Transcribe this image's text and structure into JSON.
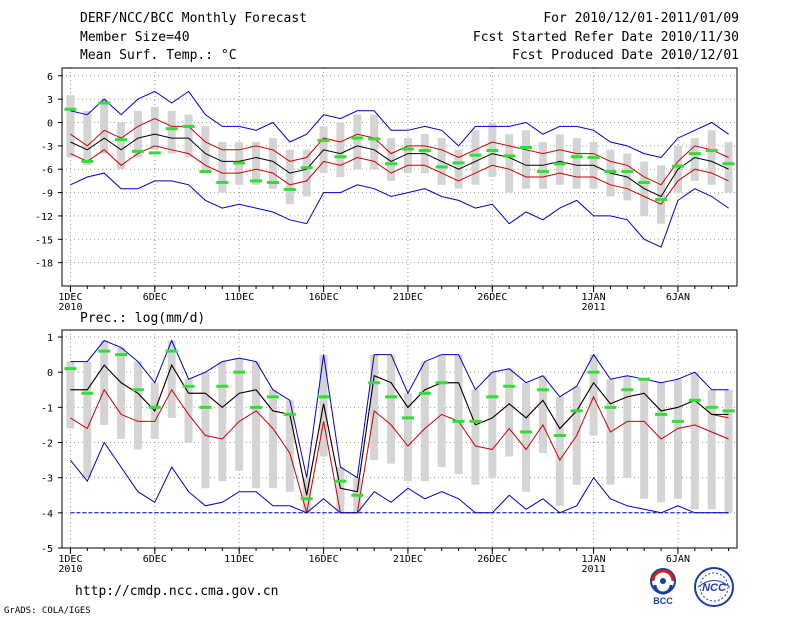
{
  "header": {
    "title": "DERF/NCC/BCC Monthly Forecast",
    "member_size": "Member Size=40",
    "variable": "Mean Surf. Temp.: °C",
    "period": "For 2010/12/01-2011/01/09",
    "started": "Fcst Started Refer Date 2010/11/30",
    "produced": "Fcst Produced Date 2010/12/01"
  },
  "footer": {
    "url": "http://cmdp.ncc.cma.gov.cn",
    "grads": "GrADS: COLA/IGES"
  },
  "logos": {
    "bcc": "BCC",
    "ncc": "NCC"
  },
  "colors": {
    "max": "#0000cc",
    "pct": "#cc0000",
    "mean": "#000000",
    "box": "#d4d4d4",
    "obs": "#33dd33",
    "grid": "#999999"
  },
  "chart_data": [
    {
      "type": "line",
      "title": "Mean Surf. Temp.: °C",
      "x_tick_labels": [
        {
          "day": 1,
          "label": "1DEC",
          "sub": "2010"
        },
        {
          "day": 6,
          "label": "6DEC",
          "sub": ""
        },
        {
          "day": 11,
          "label": "11DEC",
          "sub": ""
        },
        {
          "day": 16,
          "label": "16DEC",
          "sub": ""
        },
        {
          "day": 21,
          "label": "21DEC",
          "sub": ""
        },
        {
          "day": 26,
          "label": "26DEC",
          "sub": ""
        },
        {
          "day": 32,
          "label": "1JAN",
          "sub": "2011"
        },
        {
          "day": 37,
          "label": "6JAN",
          "sub": ""
        }
      ],
      "xlim": [
        0.5,
        40.5
      ],
      "ylim": [
        -21,
        7
      ],
      "yticks": [
        6,
        3,
        0,
        -3,
        -6,
        -9,
        -12,
        -15,
        -18
      ],
      "x_days": [
        1,
        2,
        3,
        4,
        5,
        6,
        7,
        8,
        9,
        10,
        11,
        12,
        13,
        14,
        15,
        16,
        17,
        18,
        19,
        20,
        21,
        22,
        23,
        24,
        25,
        26,
        27,
        28,
        29,
        30,
        31,
        32,
        33,
        34,
        35,
        36,
        37,
        38,
        39,
        40
      ],
      "series": [
        {
          "name": "max",
          "values": [
            1.5,
            1,
            3,
            1,
            3,
            4,
            2.5,
            4,
            1,
            -0.5,
            -0.5,
            -1,
            0,
            -2.5,
            -1.5,
            1,
            0.5,
            1.5,
            1.5,
            -1,
            -1,
            -0.5,
            -1,
            -3,
            -0.5,
            -0.5,
            -0.5,
            0,
            -1.5,
            -0.5,
            -0.5,
            -1,
            -2.5,
            -3,
            -4,
            -4.5,
            -2,
            -1,
            0,
            -1.5
          ]
        },
        {
          "name": "p90",
          "values": [
            -1.5,
            -3,
            -1,
            -2,
            -0.5,
            0.5,
            -0.5,
            -0.5,
            -2.5,
            -3.5,
            -3.5,
            -3,
            -3.5,
            -5,
            -4.5,
            -2,
            -2.5,
            -1.5,
            -2,
            -4,
            -3,
            -3,
            -3.5,
            -4.5,
            -3.5,
            -2.5,
            -3,
            -3.5,
            -4,
            -3.5,
            -4,
            -4,
            -5,
            -5.5,
            -7,
            -8,
            -5,
            -3,
            -3.5,
            -4.5
          ]
        },
        {
          "name": "mean",
          "values": [
            -2.5,
            -3.5,
            -2,
            -3.5,
            -2,
            -1.5,
            -2,
            -2,
            -4,
            -5,
            -5,
            -4.5,
            -5,
            -6.5,
            -6,
            -3.5,
            -4,
            -3,
            -3.5,
            -5,
            -4,
            -4,
            -5,
            -6,
            -5,
            -4,
            -4.5,
            -5.5,
            -5.5,
            -5,
            -5.5,
            -5.5,
            -6.5,
            -7,
            -8.5,
            -9.5,
            -6,
            -4.5,
            -5,
            -6
          ]
        },
        {
          "name": "p10",
          "values": [
            -4,
            -5,
            -3.5,
            -5.5,
            -4,
            -3,
            -3.5,
            -4,
            -5.5,
            -6.5,
            -6.5,
            -6,
            -6.5,
            -8,
            -7.5,
            -5,
            -5.5,
            -4.5,
            -5,
            -6.5,
            -5.5,
            -5.5,
            -6.5,
            -7.5,
            -6.5,
            -5.5,
            -6,
            -7,
            -7,
            -6.5,
            -7,
            -7,
            -8,
            -8.5,
            -9.5,
            -10.5,
            -7.5,
            -6,
            -6.5,
            -7.5
          ]
        },
        {
          "name": "min",
          "values": [
            -8,
            -7,
            -6.5,
            -8.5,
            -8.5,
            -7.5,
            -7.5,
            -8,
            -10,
            -11,
            -10.5,
            -11,
            -11.5,
            -12.5,
            -13,
            -9,
            -9,
            -8,
            -8.5,
            -9.5,
            -9,
            -8.5,
            -9.5,
            -10,
            -11,
            -10.5,
            -13,
            -11.5,
            -12.5,
            -11,
            -10,
            -12,
            -12,
            -12.5,
            -15,
            -16,
            -10,
            -8.5,
            -9.5,
            -11
          ]
        }
      ],
      "box": {
        "low": [
          -4.5,
          -5.5,
          -4,
          -6,
          -4.5,
          -3.5,
          -4,
          -4.5,
          -6.5,
          -9,
          -8,
          -8,
          -8.5,
          -10.5,
          -9.5,
          -6.5,
          -7,
          -6,
          -6,
          -7.5,
          -6.5,
          -6.5,
          -8,
          -8.5,
          -8,
          -7,
          -9,
          -8.5,
          -8.5,
          -8,
          -8.5,
          -8.5,
          -9.5,
          -10,
          -12,
          -13,
          -9,
          -7.5,
          -8,
          -9
        ],
        "high": [
          3.5,
          1.5,
          3,
          0,
          1.5,
          2,
          1.5,
          1,
          -0.5,
          -2.5,
          -2.5,
          -2.5,
          -2,
          -3.5,
          -3.5,
          -0.5,
          0,
          1,
          1,
          -2,
          -2,
          -1.5,
          -2,
          -3.5,
          -1,
          0,
          -1.5,
          -1,
          -2.5,
          -1.5,
          -2,
          -2.5,
          -3.5,
          -4,
          -5,
          -5.5,
          -3,
          -2,
          -1,
          -2.5
        ]
      },
      "observed": [
        1.7,
        -5,
        2.5,
        -2.2,
        -3.7,
        -3.9,
        -0.8,
        -0.5,
        -6.3,
        -7.7,
        -5.2,
        -7.5,
        -7.7,
        -8.6,
        -5.8,
        -2.3,
        -4.4,
        -2,
        -2.1,
        -5.3,
        -3.4,
        -3.6,
        -5.7,
        -5.2,
        -4.2,
        -3.6,
        -4.3,
        -3.2,
        -6.3,
        -5.3,
        -4.4,
        -4.5,
        -6.3,
        -6.3,
        -7.7,
        -9.9,
        -5.6,
        -4,
        -3.6,
        -5.3
      ]
    },
    {
      "type": "line",
      "title": "Prec.: log(mm/d)",
      "x_tick_labels": [
        {
          "day": 1,
          "label": "1DEC",
          "sub": "2010"
        },
        {
          "day": 6,
          "label": "6DEC",
          "sub": ""
        },
        {
          "day": 11,
          "label": "11DEC",
          "sub": ""
        },
        {
          "day": 16,
          "label": "16DEC",
          "sub": ""
        },
        {
          "day": 21,
          "label": "21DEC",
          "sub": ""
        },
        {
          "day": 26,
          "label": "26DEC",
          "sub": ""
        },
        {
          "day": 32,
          "label": "1JAN",
          "sub": "2011"
        },
        {
          "day": 37,
          "label": "6JAN",
          "sub": ""
        }
      ],
      "xlim": [
        0.5,
        40.5
      ],
      "ylim": [
        -5,
        1.2
      ],
      "yticks": [
        1,
        0,
        -1,
        -2,
        -3,
        -4,
        -5
      ],
      "x_days": [
        1,
        2,
        3,
        4,
        5,
        6,
        7,
        8,
        9,
        10,
        11,
        12,
        13,
        14,
        15,
        16,
        17,
        18,
        19,
        20,
        21,
        22,
        23,
        24,
        25,
        26,
        27,
        28,
        29,
        30,
        31,
        32,
        33,
        34,
        35,
        36,
        37,
        38,
        39,
        40
      ],
      "series": [
        {
          "name": "max",
          "values": [
            0.3,
            0.3,
            0.9,
            0.7,
            0.3,
            -0.3,
            0.9,
            -0.2,
            0,
            0.3,
            0.4,
            0.3,
            -0.5,
            -0.8,
            -3,
            0.5,
            -2.7,
            -3,
            0.5,
            0.5,
            -0.6,
            0.3,
            0.5,
            0.5,
            -0.5,
            0,
            0.1,
            -0.3,
            -0.1,
            -0.7,
            -0.4,
            0.5,
            -0.2,
            -0.1,
            -0.2,
            -0.3,
            -0.2,
            0,
            -0.5,
            -0.5
          ]
        },
        {
          "name": "p90",
          "values": [
            -0.5,
            -0.5,
            0.2,
            -0.3,
            -0.6,
            -1.1,
            0.2,
            -0.6,
            -0.6,
            -1,
            -0.6,
            -0.5,
            -1.1,
            -1.2,
            -3.5,
            -0.9,
            -3.3,
            -3.4,
            -0.1,
            -0.3,
            -1,
            -0.5,
            -0.3,
            -0.3,
            -1.5,
            -1.3,
            -0.9,
            -1.3,
            -0.8,
            -1.6,
            -1.1,
            -0.3,
            -0.9,
            -0.7,
            -0.6,
            -1.1,
            -1,
            -0.8,
            -1.2,
            -1.3
          ]
        },
        {
          "name": "mean",
          "values": [
            -0.5,
            -0.5,
            0.2,
            -0.3,
            -0.6,
            -1.1,
            0.2,
            -0.6,
            -0.6,
            -1,
            -0.6,
            -0.5,
            -1.1,
            -1.2,
            -3.5,
            -0.9,
            -3.3,
            -3.4,
            -0.1,
            -0.3,
            -1,
            -0.5,
            -0.3,
            -0.3,
            -1.5,
            -1.3,
            -0.9,
            -1.3,
            -0.8,
            -1.6,
            -1.1,
            -0.3,
            -0.9,
            -0.7,
            -0.6,
            -1.1,
            -1,
            -0.8,
            -1.2,
            -1.2
          ]
        },
        {
          "name": "p10",
          "values": [
            -1.3,
            -1.6,
            -0.5,
            -1.2,
            -1.4,
            -1.4,
            -0.5,
            -1.2,
            -1.8,
            -1.9,
            -1.4,
            -1.1,
            -1.6,
            -2.3,
            -4,
            -1.4,
            -4,
            -4,
            -1.1,
            -1.5,
            -2.1,
            -1.6,
            -1.2,
            -1.4,
            -2.1,
            -2.2,
            -1.6,
            -2.2,
            -1.5,
            -2.5,
            -1.8,
            -0.7,
            -1.7,
            -1.4,
            -1.4,
            -1.9,
            -1.6,
            -1.5,
            -1.7,
            -1.9
          ]
        },
        {
          "name": "min",
          "values": [
            -2.5,
            -3.1,
            -2,
            -2.7,
            -3.4,
            -3.7,
            -2.7,
            -3.4,
            -3.8,
            -3.7,
            -3.4,
            -3.4,
            -3.8,
            -3.8,
            -4,
            -3.6,
            -4,
            -4,
            -3.4,
            -3.7,
            -3.3,
            -3.6,
            -3.4,
            -3.6,
            -4,
            -4,
            -3.5,
            -3.9,
            -3.6,
            -4,
            -3.8,
            -3,
            -3.6,
            -3.8,
            -3.9,
            -4,
            -3.8,
            -4,
            -4,
            -4
          ]
        },
        {
          "name": "lower-bound",
          "values": [
            -4,
            -4,
            -4,
            -4,
            -4,
            -4,
            -4,
            -4,
            -4,
            -4,
            -4,
            -4,
            -4,
            -4,
            -4,
            -4,
            -4,
            -4,
            -4,
            -4,
            -4,
            -4,
            -4,
            -4,
            -4,
            -4,
            -4,
            -4,
            -4,
            -4,
            -4,
            -4,
            -4,
            -4,
            -4,
            -4,
            -4,
            -4,
            -4,
            -4
          ]
        }
      ],
      "box": {
        "low": [
          -1.6,
          -3,
          -1.5,
          -1.9,
          -2.2,
          -1.9,
          -1.3,
          -2,
          -3.3,
          -3.1,
          -2.8,
          -3.3,
          -3.3,
          -3.4,
          -4,
          -2.4,
          -4,
          -4,
          -2.5,
          -2.6,
          -3.1,
          -3.1,
          -2.7,
          -2.9,
          -3.2,
          -3,
          -2.4,
          -3.4,
          -2.3,
          -3.8,
          -3.2,
          -1.8,
          -3.2,
          -3,
          -3.6,
          -3.7,
          -3.6,
          -3.9,
          -3.9,
          -4
        ]
      },
      "observed": [
        0.1,
        -0.6,
        0.6,
        0.5,
        -0.5,
        -1,
        0.6,
        -0.4,
        -1,
        -0.4,
        0,
        -1,
        -0.7,
        -1.2,
        -3.6,
        -0.7,
        -3.1,
        -3.5,
        -0.3,
        -0.7,
        -1.3,
        -0.6,
        -0.3,
        -1.4,
        -1.4,
        -0.7,
        -0.4,
        -1.7,
        -0.5,
        -1.8,
        -1.1,
        0,
        -1,
        -0.5,
        -0.2,
        -1.2,
        -1.4,
        -0.8,
        -1,
        -1.1
      ]
    }
  ]
}
